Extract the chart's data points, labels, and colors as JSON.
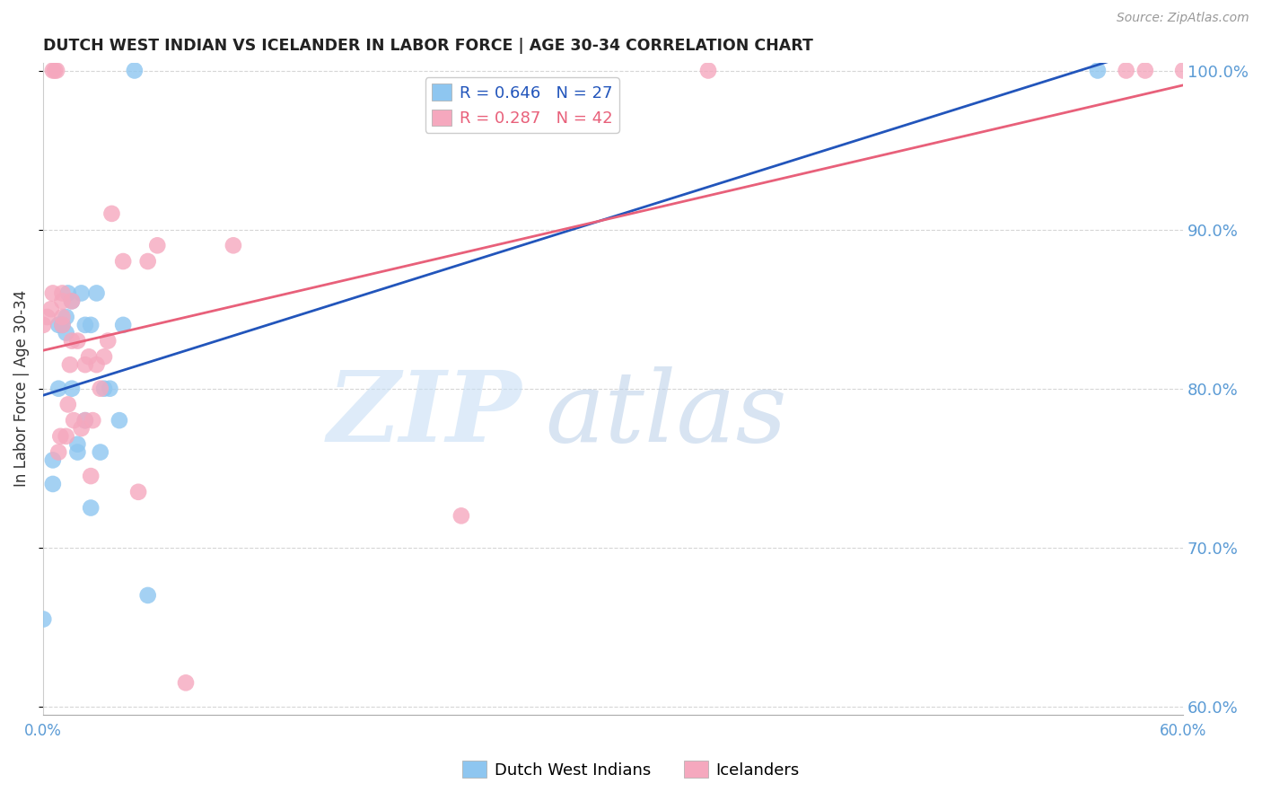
{
  "title": "DUTCH WEST INDIAN VS ICELANDER IN LABOR FORCE | AGE 30-34 CORRELATION CHART",
  "source": "Source: ZipAtlas.com",
  "ylabel": "In Labor Force | Age 30-34",
  "xlim": [
    0.0,
    0.6
  ],
  "ylim": [
    0.595,
    1.005
  ],
  "yticks": [
    0.6,
    0.7,
    0.8,
    0.9,
    1.0
  ],
  "xticks": [
    0.0,
    0.1,
    0.2,
    0.3,
    0.4,
    0.5,
    0.6
  ],
  "xtick_labels": [
    "0.0%",
    "",
    "",
    "",
    "",
    "",
    "60.0%"
  ],
  "blue_color": "#8EC6F0",
  "pink_color": "#F5A8BE",
  "blue_line_color": "#2255BB",
  "pink_line_color": "#E8607A",
  "r_blue": 0.646,
  "n_blue": 27,
  "r_pink": 0.287,
  "n_pink": 42,
  "blue_x": [
    0.0,
    0.005,
    0.005,
    0.008,
    0.008,
    0.01,
    0.012,
    0.012,
    0.013,
    0.015,
    0.015,
    0.018,
    0.018,
    0.02,
    0.022,
    0.022,
    0.025,
    0.025,
    0.028,
    0.03,
    0.032,
    0.035,
    0.04,
    0.042,
    0.048,
    0.055,
    0.555
  ],
  "blue_y": [
    0.655,
    0.74,
    0.755,
    0.8,
    0.84,
    0.84,
    0.835,
    0.845,
    0.86,
    0.8,
    0.855,
    0.76,
    0.765,
    0.86,
    0.78,
    0.84,
    0.725,
    0.84,
    0.86,
    0.76,
    0.8,
    0.8,
    0.78,
    0.84,
    1.0,
    0.67,
    1.0
  ],
  "pink_x": [
    0.0,
    0.002,
    0.004,
    0.005,
    0.005,
    0.006,
    0.007,
    0.008,
    0.009,
    0.01,
    0.01,
    0.01,
    0.01,
    0.012,
    0.013,
    0.014,
    0.015,
    0.015,
    0.016,
    0.018,
    0.02,
    0.022,
    0.022,
    0.024,
    0.025,
    0.026,
    0.028,
    0.03,
    0.032,
    0.034,
    0.036,
    0.042,
    0.05,
    0.055,
    0.06,
    0.075,
    0.1,
    0.22,
    0.35,
    0.57,
    0.58,
    0.6
  ],
  "pink_y": [
    0.84,
    0.845,
    0.85,
    0.86,
    1.0,
    1.0,
    1.0,
    0.76,
    0.77,
    0.84,
    0.845,
    0.855,
    0.86,
    0.77,
    0.79,
    0.815,
    0.83,
    0.855,
    0.78,
    0.83,
    0.775,
    0.78,
    0.815,
    0.82,
    0.745,
    0.78,
    0.815,
    0.8,
    0.82,
    0.83,
    0.91,
    0.88,
    0.735,
    0.88,
    0.89,
    0.615,
    0.89,
    0.72,
    1.0,
    1.0,
    1.0,
    1.0
  ]
}
